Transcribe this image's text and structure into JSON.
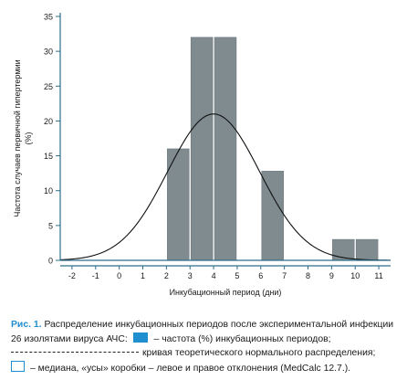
{
  "chart_data": {
    "type": "bar",
    "ylabel": "Частота случаев первичной гипертермии (%)",
    "xlabel": "Инкубационный период (дни)",
    "xlim": [
      -2.5,
      11.5
    ],
    "ylim": [
      0,
      35
    ],
    "xticks": [
      "-2",
      "-1",
      "0",
      "1",
      "2",
      "3",
      "4",
      "5",
      "6",
      "7",
      "8",
      "9",
      "10",
      "11"
    ],
    "yticks": [
      "0",
      "5",
      "10",
      "15",
      "20",
      "25",
      "30",
      "35"
    ],
    "bars": [
      {
        "x_start": 2,
        "x_end": 3,
        "value": 16
      },
      {
        "x_start": 3,
        "x_end": 4,
        "value": 32
      },
      {
        "x_start": 4,
        "x_end": 5,
        "value": 32
      },
      {
        "x_start": 6,
        "x_end": 7,
        "value": 12.8
      },
      {
        "x_start": 9,
        "x_end": 10,
        "value": 3
      },
      {
        "x_start": 10,
        "x_end": 11,
        "value": 3
      }
    ],
    "normal_curve": {
      "mean": 4,
      "sd": 1.95,
      "peak": 21
    },
    "colors": {
      "axis": "#2c6f8a",
      "bar": "#7f8b8f",
      "curve": "#111111"
    }
  },
  "caption": {
    "label": "Рис. 1.",
    "text": "Распределение инкубационных периодов после экспериментальной инфекции 26 изолятами вируса АЧС:",
    "legend_bars": "– частота (%) инкубационных периодов;",
    "legend_curve": "кривая теоретического нормального распределения;",
    "legend_box": "– медиана, «усы» коробки – левое и правое отклонения (MedCalc 12.7.)."
  },
  "colors": {
    "legend_bar": "#1f8fd0",
    "caption_title": "#1f8fd0"
  }
}
